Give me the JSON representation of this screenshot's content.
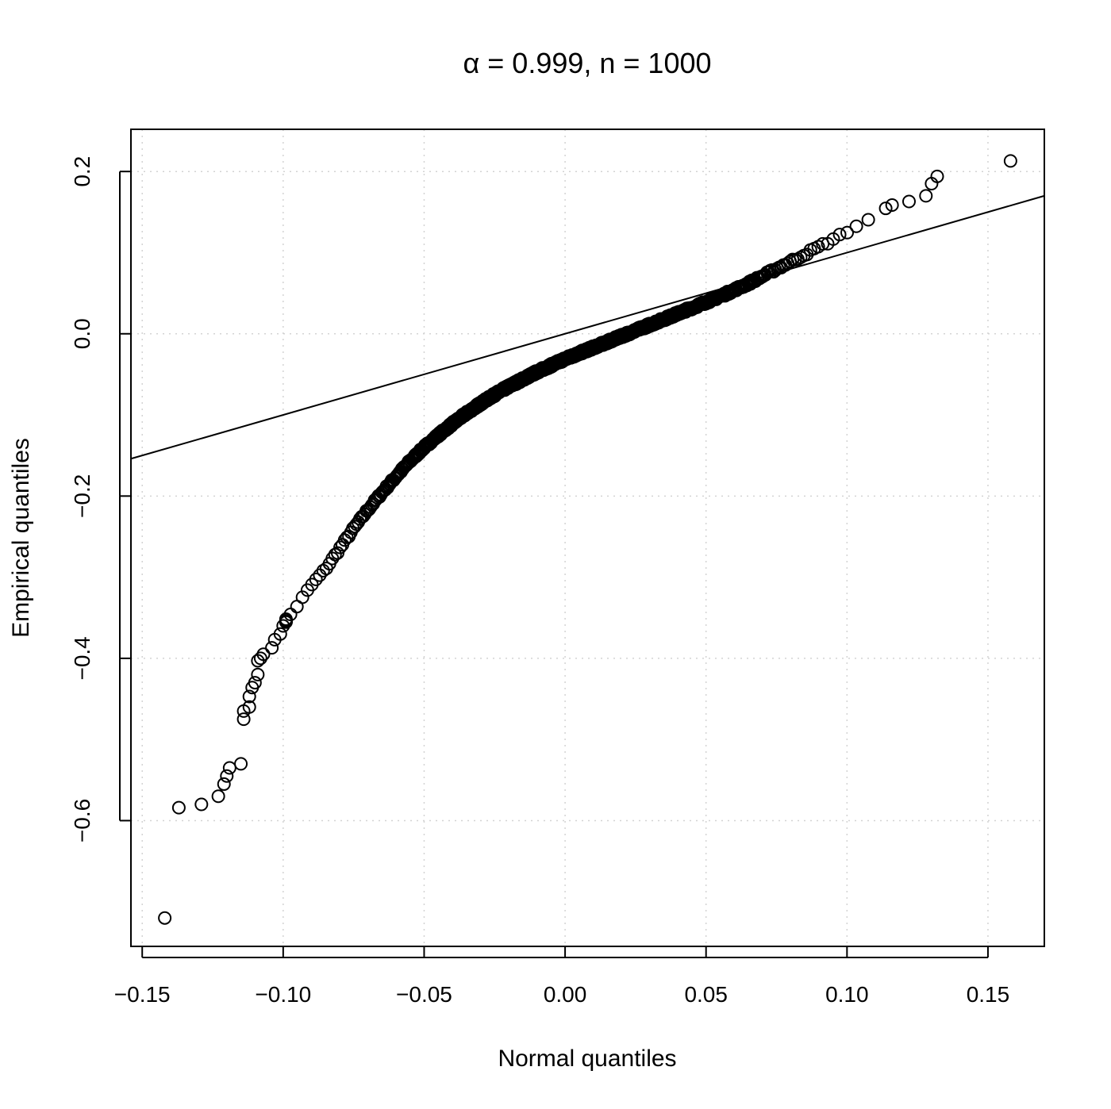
{
  "chart_data": {
    "type": "scatter",
    "title_prefix": "α",
    "title_rest": " = 0.999, n = 1000",
    "xlabel": "Normal quantiles",
    "ylabel": "Empirical quantiles",
    "xlim": [
      -0.154,
      0.17
    ],
    "ylim": [
      -0.755,
      0.252
    ],
    "x_ticks": [
      -0.15,
      -0.1,
      -0.05,
      0.0,
      0.05,
      0.1,
      0.15
    ],
    "x_tick_labels": [
      "−0.15",
      "−0.10",
      "−0.05",
      "0.00",
      "0.05",
      "0.10",
      "0.15"
    ],
    "y_ticks": [
      -0.6,
      -0.4,
      -0.2,
      0.0,
      0.2
    ],
    "y_tick_labels": [
      "−0.6",
      "−0.4",
      "−0.2",
      "0.0",
      "0.2"
    ],
    "grid": true,
    "reference_line": {
      "slope": 1,
      "intercept": 0
    },
    "n_points": 1000,
    "curve_knots": {
      "x": [
        -0.118,
        -0.115,
        -0.11,
        -0.105,
        -0.1,
        -0.095,
        -0.09,
        -0.085,
        -0.08,
        -0.075,
        -0.07,
        -0.065,
        -0.06,
        -0.055,
        -0.05,
        -0.045,
        -0.04,
        -0.035,
        -0.03,
        -0.025,
        -0.02,
        -0.015,
        -0.01,
        -0.005,
        0.0,
        0.005,
        0.01,
        0.015,
        0.02,
        0.025,
        0.03,
        0.035,
        0.04,
        0.045,
        0.05,
        0.055,
        0.06,
        0.065,
        0.07,
        0.075,
        0.08,
        0.085,
        0.09,
        0.095,
        0.1,
        0.105,
        0.11,
        0.115,
        0.12
      ],
      "y": [
        -0.47,
        -0.455,
        -0.41,
        -0.38,
        -0.358,
        -0.335,
        -0.31,
        -0.29,
        -0.265,
        -0.24,
        -0.217,
        -0.196,
        -0.176,
        -0.157,
        -0.14,
        -0.125,
        -0.111,
        -0.098,
        -0.086,
        -0.075,
        -0.065,
        -0.056,
        -0.047,
        -0.039,
        -0.031,
        -0.024,
        -0.017,
        -0.01,
        -0.003,
        0.004,
        0.011,
        0.018,
        0.025,
        0.032,
        0.039,
        0.046,
        0.054,
        0.062,
        0.071,
        0.08,
        0.089,
        0.098,
        0.107,
        0.116,
        0.126,
        0.136,
        0.146,
        0.156,
        0.166
      ]
    },
    "tail_points": [
      {
        "x": -0.142,
        "y": -0.72
      },
      {
        "x": -0.137,
        "y": -0.584
      },
      {
        "x": -0.129,
        "y": -0.58
      },
      {
        "x": -0.123,
        "y": -0.57
      },
      {
        "x": -0.121,
        "y": -0.555
      },
      {
        "x": -0.12,
        "y": -0.545
      },
      {
        "x": -0.119,
        "y": -0.535
      },
      {
        "x": -0.115,
        "y": -0.53
      },
      {
        "x": -0.114,
        "y": -0.475
      },
      {
        "x": -0.114,
        "y": -0.465
      },
      {
        "x": -0.112,
        "y": -0.46
      },
      {
        "x": -0.112,
        "y": -0.447
      },
      {
        "x": -0.111,
        "y": -0.436
      },
      {
        "x": -0.11,
        "y": -0.43
      },
      {
        "x": -0.109,
        "y": -0.42
      },
      {
        "x": -0.109,
        "y": -0.403
      },
      {
        "x": -0.108,
        "y": -0.4
      },
      {
        "x": -0.107,
        "y": -0.395
      },
      {
        "x": -0.104,
        "y": -0.387
      },
      {
        "x": -0.103,
        "y": -0.377
      },
      {
        "x": -0.101,
        "y": -0.37
      },
      {
        "x": -0.1,
        "y": -0.36
      },
      {
        "x": -0.099,
        "y": -0.355
      },
      {
        "x": 0.122,
        "y": 0.163
      },
      {
        "x": 0.128,
        "y": 0.17
      },
      {
        "x": 0.13,
        "y": 0.185
      },
      {
        "x": 0.132,
        "y": 0.194
      },
      {
        "x": 0.158,
        "y": 0.213
      }
    ]
  }
}
